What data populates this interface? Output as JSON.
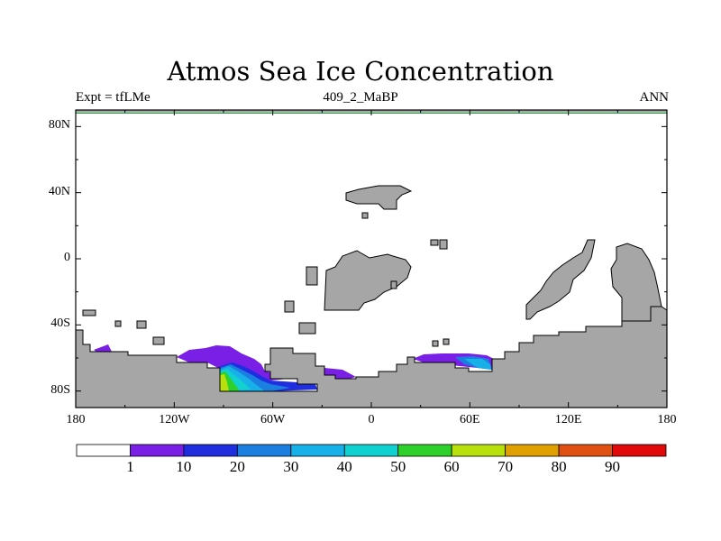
{
  "title": "Atmos Sea Ice Concentration",
  "subtitle_left": "Expt = tfLMe",
  "subtitle_center": "409_2_MaBP",
  "subtitle_right": "ANN",
  "map": {
    "projection": "cylindrical equidistant",
    "lon_range": [
      -180,
      180
    ],
    "lat_range": [
      -90,
      90
    ],
    "land_color": "#a6a6a6",
    "ocean_color": "#ffffff",
    "y_ticks": [
      {
        "lat": 80,
        "label": "80N"
      },
      {
        "lat": 40,
        "label": "40N"
      },
      {
        "lat": 0,
        "label": "0"
      },
      {
        "lat": -40,
        "label": "40S"
      },
      {
        "lat": -80,
        "label": "80S"
      }
    ],
    "x_ticks": [
      {
        "lon": -180,
        "label": "180"
      },
      {
        "lon": -120,
        "label": "120W"
      },
      {
        "lon": -60,
        "label": "60W"
      },
      {
        "lon": 0,
        "label": "0"
      },
      {
        "lon": 60,
        "label": "60E"
      },
      {
        "lon": 120,
        "label": "120E"
      },
      {
        "lon": 180,
        "label": "180"
      }
    ]
  },
  "colorbar": {
    "levels": [
      "1",
      "10",
      "20",
      "30",
      "40",
      "50",
      "60",
      "70",
      "80",
      "90"
    ],
    "colors": [
      "#ffffff",
      "#7a1fe6",
      "#1f2fe0",
      "#1a7fe0",
      "#18b0e8",
      "#10d0d0",
      "#2ed02a",
      "#b8e00c",
      "#e0a000",
      "#e05010",
      "#e00a0a"
    ]
  }
}
